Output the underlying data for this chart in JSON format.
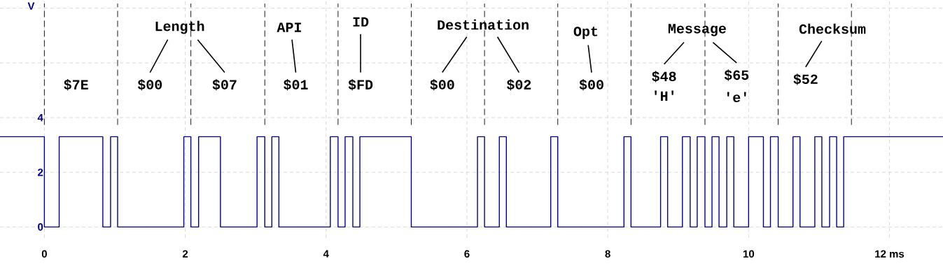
{
  "chart_data": {
    "type": "step",
    "ylabel": "V",
    "color": "#000080",
    "x": [
      -0.63,
      0,
      0.21,
      0.83,
      0.94,
      1.04,
      1.98,
      2.08,
      2.19,
      2.5,
      3.02,
      3.13,
      3.23,
      3.33,
      4.06,
      4.17,
      4.27,
      4.38,
      4.48,
      5.21,
      6.15,
      6.25,
      6.46,
      6.56,
      7.19,
      7.29,
      8.23,
      8.33,
      8.75,
      8.85,
      9.06,
      9.17,
      9.27,
      9.38,
      9.48,
      9.58,
      9.69,
      9.79,
      10.0,
      10.21,
      10.31,
      10.42,
      10.63,
      10.73,
      10.94,
      11.04,
      11.15,
      11.25,
      11.35,
      12.76
    ],
    "values": [
      3.3,
      0,
      3.3,
      0,
      3.3,
      0,
      3.3,
      0,
      3.3,
      0,
      3.3,
      0,
      3.3,
      0,
      3.3,
      0,
      3.3,
      0,
      3.3,
      0,
      3.3,
      0,
      3.3,
      0,
      3.3,
      0,
      3.3,
      0,
      3.3,
      0,
      3.3,
      0,
      3.3,
      0,
      3.3,
      0,
      3.3,
      0,
      3.3,
      0,
      3.3,
      0,
      3.3,
      0,
      3.3,
      0,
      3.3,
      0,
      3.3,
      3.3
    ],
    "xlim": [
      -0.63,
      12.76
    ],
    "ylim": [
      -0.4,
      8.3
    ],
    "xticks": [
      0,
      2,
      4,
      6,
      8,
      10,
      {
        "value": 12,
        "label": "12 ms"
      }
    ],
    "yticks": [
      0,
      2,
      4,
      {
        "value": 6,
        "label": null
      },
      {
        "value": 8,
        "label": null
      }
    ],
    "grid": true,
    "marker": "none",
    "ref_lines": [
      {
        "axis": "x",
        "value": 0,
        "color": "#000000",
        "line_style": "dashed"
      },
      {
        "axis": "x",
        "value": 1.04,
        "color": "#000000",
        "line_style": "dashed"
      },
      {
        "axis": "x",
        "value": 2.08,
        "color": "#000000",
        "line_style": "dashed"
      },
      {
        "axis": "x",
        "value": 3.13,
        "color": "#000000",
        "line_style": "dashed"
      },
      {
        "axis": "x",
        "value": 4.17,
        "color": "#000000",
        "line_style": "dashed"
      },
      {
        "axis": "x",
        "value": 5.21,
        "color": "#000000",
        "line_style": "dashed"
      },
      {
        "axis": "x",
        "value": 6.25,
        "color": "#000000",
        "line_style": "dashed"
      },
      {
        "axis": "x",
        "value": 7.29,
        "color": "#000000",
        "line_style": "dashed"
      },
      {
        "axis": "x",
        "value": 8.33,
        "color": "#000000",
        "line_style": "dashed"
      },
      {
        "axis": "x",
        "value": 9.38,
        "color": "#000000",
        "line_style": "dashed"
      },
      {
        "axis": "x",
        "value": 10.42,
        "color": "#000000",
        "line_style": "dashed"
      },
      {
        "axis": "x",
        "value": 11.46,
        "color": "#000000",
        "line_style": "dashed"
      }
    ],
    "annotations": [
      "$7E",
      "Length",
      "$00",
      "$07",
      "API",
      "$01",
      "ID",
      "$FD",
      "Destination",
      "$00",
      "$02",
      "Opt",
      "$00",
      "Message",
      "$48",
      "'H'",
      "$65",
      "'e'",
      "Checksum",
      "$52"
    ]
  }
}
